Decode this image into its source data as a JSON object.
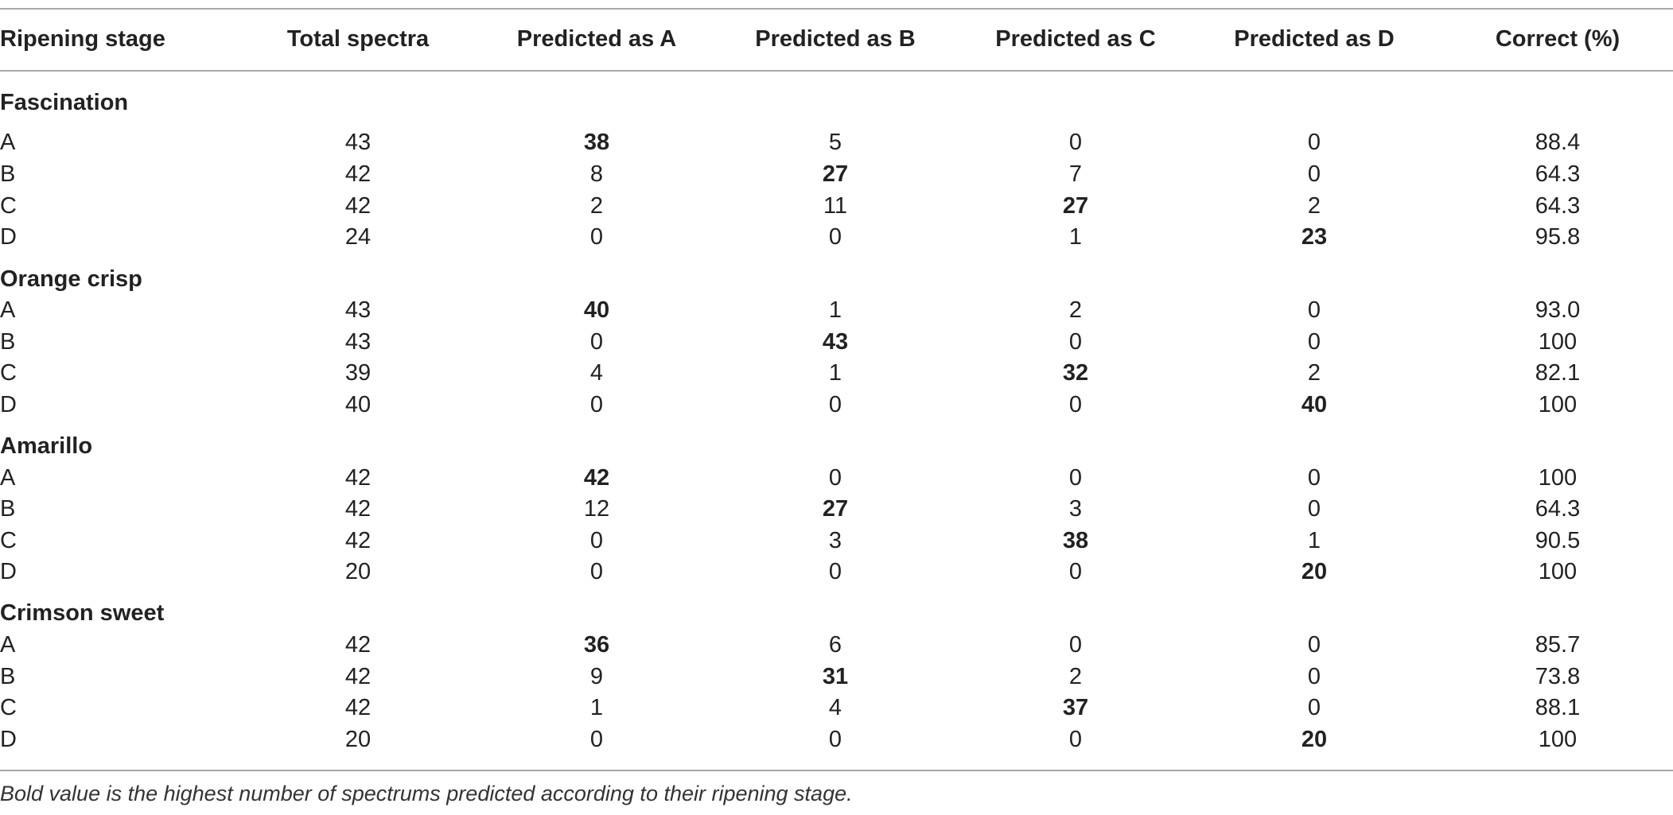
{
  "table": {
    "headers": [
      "Ripening stage",
      "Total spectra",
      "Predicted as A",
      "Predicted as B",
      "Predicted as C",
      "Predicted as D",
      "Correct (%)"
    ],
    "groups": [
      {
        "name": "Fascination",
        "rows": [
          {
            "stage": "A",
            "total": "43",
            "a": "38",
            "b": "5",
            "c": "0",
            "d": "0",
            "correct": "88.4",
            "bold": "a"
          },
          {
            "stage": "B",
            "total": "42",
            "a": "8",
            "b": "27",
            "c": "7",
            "d": "0",
            "correct": "64.3",
            "bold": "b"
          },
          {
            "stage": "C",
            "total": "42",
            "a": "2",
            "b": "11",
            "c": "27",
            "d": "2",
            "correct": "64.3",
            "bold": "c"
          },
          {
            "stage": "D",
            "total": "24",
            "a": "0",
            "b": "0",
            "c": "1",
            "d": "23",
            "correct": "95.8",
            "bold": "d"
          }
        ]
      },
      {
        "name": "Orange crisp",
        "rows": [
          {
            "stage": "A",
            "total": "43",
            "a": "40",
            "b": "1",
            "c": "2",
            "d": "0",
            "correct": "93.0",
            "bold": "a"
          },
          {
            "stage": "B",
            "total": "43",
            "a": "0",
            "b": "43",
            "c": "0",
            "d": "0",
            "correct": "100",
            "bold": "b"
          },
          {
            "stage": "C",
            "total": "39",
            "a": "4",
            "b": "1",
            "c": "32",
            "d": "2",
            "correct": "82.1",
            "bold": "c"
          },
          {
            "stage": "D",
            "total": "40",
            "a": "0",
            "b": "0",
            "c": "0",
            "d": "40",
            "correct": "100",
            "bold": "d"
          }
        ]
      },
      {
        "name": "Amarillo",
        "rows": [
          {
            "stage": "A",
            "total": "42",
            "a": "42",
            "b": "0",
            "c": "0",
            "d": "0",
            "correct": "100",
            "bold": "a"
          },
          {
            "stage": "B",
            "total": "42",
            "a": "12",
            "b": "27",
            "c": "3",
            "d": "0",
            "correct": "64.3",
            "bold": "b"
          },
          {
            "stage": "C",
            "total": "42",
            "a": "0",
            "b": "3",
            "c": "38",
            "d": "1",
            "correct": "90.5",
            "bold": "c"
          },
          {
            "stage": "D",
            "total": "20",
            "a": "0",
            "b": "0",
            "c": "0",
            "d": "20",
            "correct": "100",
            "bold": "d"
          }
        ]
      },
      {
        "name": "Crimson sweet",
        "rows": [
          {
            "stage": "A",
            "total": "42",
            "a": "36",
            "b": "6",
            "c": "0",
            "d": "0",
            "correct": "85.7",
            "bold": "a"
          },
          {
            "stage": "B",
            "total": "42",
            "a": "9",
            "b": "31",
            "c": "2",
            "d": "0",
            "correct": "73.8",
            "bold": "b"
          },
          {
            "stage": "C",
            "total": "42",
            "a": "1",
            "b": "4",
            "c": "37",
            "d": "0",
            "correct": "88.1",
            "bold": "c"
          },
          {
            "stage": "D",
            "total": "20",
            "a": "0",
            "b": "0",
            "c": "0",
            "d": "20",
            "correct": "100",
            "bold": "d"
          }
        ]
      }
    ]
  },
  "footnote": "Bold value is the highest number of spectrums predicted according to their ripening stage."
}
